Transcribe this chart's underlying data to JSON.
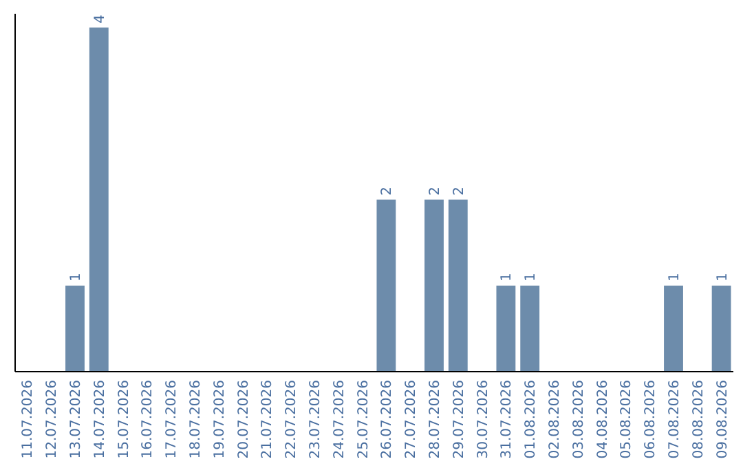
{
  "chart_data": {
    "type": "bar",
    "categories": [
      "11.07.2026",
      "12.07.2026",
      "13.07.2026",
      "14.07.2026",
      "15.07.2026",
      "16.07.2026",
      "17.07.2026",
      "18.07.2026",
      "19.07.2026",
      "20.07.2026",
      "21.07.2026",
      "22.07.2026",
      "23.07.2026",
      "24.07.2026",
      "25.07.2026",
      "26.07.2026",
      "27.07.2026",
      "28.07.2026",
      "29.07.2026",
      "30.07.2026",
      "31.07.2026",
      "01.08.2026",
      "02.08.2026",
      "03.08.2026",
      "04.08.2026",
      "05.08.2026",
      "06.08.2026",
      "07.08.2026",
      "08.08.2026",
      "09.08.2026"
    ],
    "values": [
      0,
      0,
      1,
      4,
      0,
      0,
      0,
      0,
      0,
      0,
      0,
      0,
      0,
      0,
      0,
      2,
      0,
      2,
      2,
      0,
      1,
      1,
      0,
      0,
      0,
      0,
      0,
      1,
      0,
      1
    ],
    "value_labels": [
      null,
      null,
      "1",
      "4",
      null,
      null,
      null,
      null,
      null,
      null,
      null,
      null,
      null,
      null,
      null,
      "2",
      null,
      "2",
      "2",
      null,
      "1",
      "1",
      null,
      null,
      null,
      null,
      null,
      "1",
      null,
      "1"
    ],
    "color": "#6d8cab"
  }
}
